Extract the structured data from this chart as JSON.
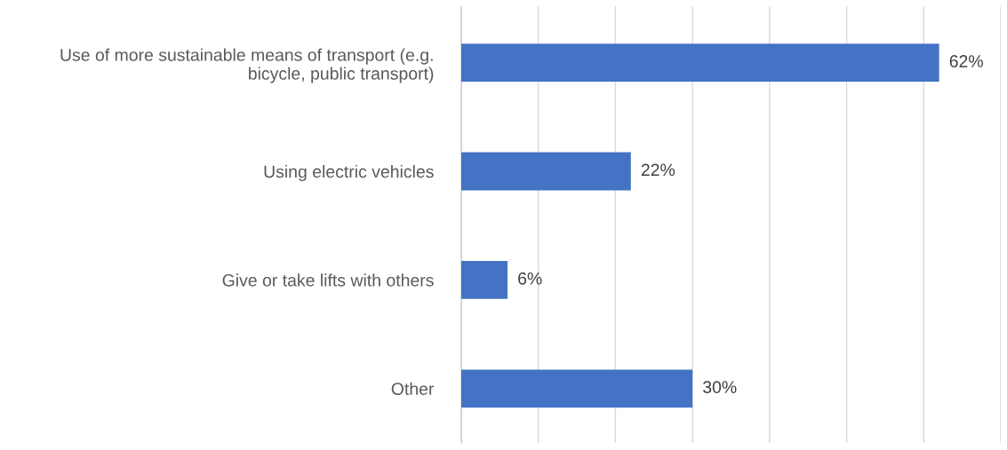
{
  "chart_data": {
    "type": "bar",
    "orientation": "horizontal",
    "categories": [
      "Use of more sustainable means of transport (e.g. bicycle, public transport)",
      "Using electric vehicles",
      "Give or take lifts with others",
      "Other"
    ],
    "values": [
      62,
      22,
      6,
      30
    ],
    "value_labels": [
      "62%",
      "22%",
      "6%",
      "30%"
    ],
    "color": "#4472c4",
    "xlim": [
      0,
      70
    ],
    "xticks": [
      0,
      10,
      20,
      30,
      40,
      50,
      60,
      70
    ],
    "tick_labels": "y",
    "grid": "x",
    "legend": false
  }
}
